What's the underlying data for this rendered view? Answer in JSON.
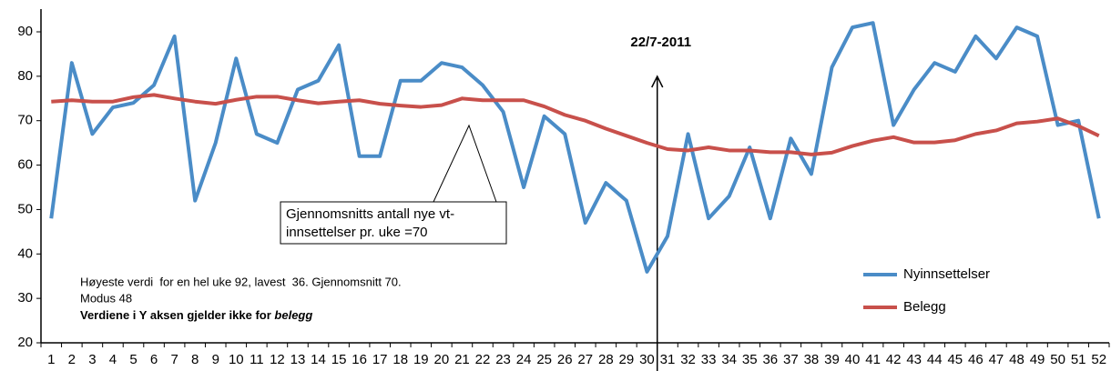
{
  "chart_data": {
    "type": "line",
    "categories": [
      "1",
      "2",
      "3",
      "4",
      "5",
      "6",
      "7",
      "8",
      "9",
      "10",
      "11",
      "12",
      "13",
      "14",
      "15",
      "16",
      "17",
      "18",
      "19",
      "20",
      "21",
      "22",
      "23",
      "24",
      "25",
      "26",
      "27",
      "28",
      "29",
      "30",
      "31",
      "32",
      "33",
      "34",
      "35",
      "36",
      "37",
      "38",
      "39",
      "40",
      "41",
      "42",
      "43",
      "44",
      "45",
      "46",
      "47",
      "48",
      "49",
      "50",
      "51",
      "52"
    ],
    "series": [
      {
        "name": "Nyinnsettelser",
        "color": "#4a8cc7",
        "values": [
          48,
          83,
          67,
          73,
          74,
          78,
          89,
          52,
          65,
          84,
          67,
          65,
          77,
          79,
          87,
          62,
          62,
          79,
          79,
          83,
          82,
          78,
          72,
          55,
          71,
          67,
          47,
          56,
          52,
          36,
          44,
          67,
          48,
          53,
          64,
          48,
          66,
          58,
          82,
          91,
          92,
          69,
          77,
          83,
          81,
          89,
          84,
          91,
          89,
          69,
          70,
          48
        ]
      },
      {
        "name": "Belegg",
        "color": "#c8504b",
        "values": [
          74.3,
          74.6,
          74.3,
          74.3,
          75.3,
          75.8,
          75,
          74.3,
          73.8,
          74.7,
          75.4,
          75.4,
          74.6,
          73.9,
          74.3,
          74.6,
          73.8,
          73.4,
          73.1,
          73.5,
          75,
          74.6,
          74.6,
          74.6,
          73.2,
          71.3,
          70,
          68.2,
          66.6,
          65,
          63.6,
          63.3,
          64,
          63.3,
          63.3,
          62.9,
          62.9,
          62.4,
          62.8,
          64.3,
          65.5,
          66.3,
          65.1,
          65.1,
          65.6,
          67,
          67.8,
          69.4,
          69.8,
          70.5,
          68.8,
          66.6
        ]
      }
    ],
    "ylim": [
      20,
      90
    ],
    "yticks": [
      20,
      30,
      40,
      50,
      60,
      70,
      80,
      90
    ],
    "legend": "right",
    "annotations": {
      "date_marker": "22/7-2011",
      "callout": [
        "Gjennomsnitts antall nye vt-",
        "innsettelser pr. uke =70"
      ],
      "notes": [
        "Høyeste verdi  for en hel uke 92, lavest  36. Gjennomsnitt 70.",
        "Modus 48"
      ],
      "note_bold": "Verdiene i Y aksen gjelder ikke for",
      "note_italic": "belegg"
    }
  }
}
